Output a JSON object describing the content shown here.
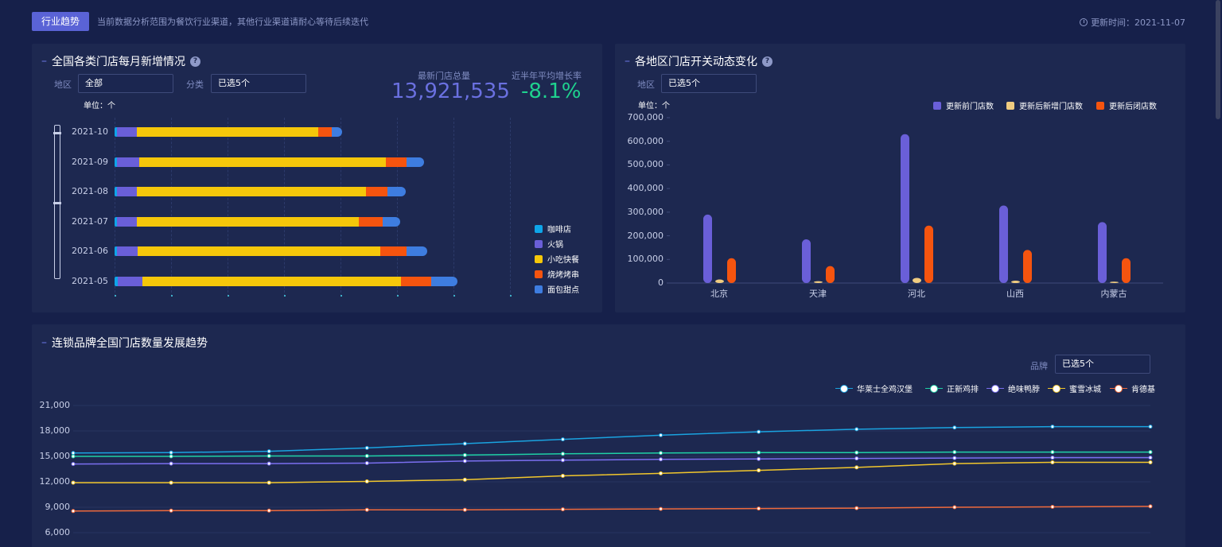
{
  "header": {
    "tag": "行业趋势",
    "notice": "当前数据分析范围为餐饮行业渠道，其他行业渠道请耐心等待后续迭代",
    "update_time": "更新时间：2021-11-07"
  },
  "panel1": {
    "title": "全国各类门店每月新增情况",
    "region_label": "地区",
    "region_value": "全部",
    "category_label": "分类",
    "category_value": "已选5个",
    "unit": "单位：个",
    "stat1_label": "最新门店总量",
    "stat1_value": "13,921,535",
    "stat2_label": "近半年平均增长率",
    "stat2_value": "-8.1%",
    "legend": [
      {
        "name": "咖啡店",
        "color": "#0ea5e9"
      },
      {
        "name": "火锅",
        "color": "#6a5fd8"
      },
      {
        "name": "小吃快餐",
        "color": "#f5c70a"
      },
      {
        "name": "烧烤烤串",
        "color": "#f5540f"
      },
      {
        "name": "面包甜点",
        "color": "#3e7de0"
      }
    ],
    "chart_data": {
      "type": "bar",
      "orientation": "horizontal",
      "stacked": true,
      "categories": [
        "2021-10",
        "2021-09",
        "2021-08",
        "2021-07",
        "2021-06",
        "2021-05"
      ],
      "series": [
        {
          "name": "咖啡店",
          "values": [
            2,
            2,
            2,
            2,
            2,
            3
          ]
        },
        {
          "name": "火锅",
          "values": [
            19,
            22,
            19,
            19,
            20,
            24
          ]
        },
        {
          "name": "小吃快餐",
          "values": [
            174,
            236,
            220,
            213,
            233,
            248
          ]
        },
        {
          "name": "烧烤烤串",
          "values": [
            13,
            20,
            21,
            23,
            25,
            29
          ]
        },
        {
          "name": "面包甜点",
          "values": [
            10,
            17,
            17,
            17,
            20,
            25
          ]
        }
      ],
      "xmax": 380
    }
  },
  "panel2": {
    "title": "各地区门店开关动态变化",
    "region_label": "地区",
    "region_value": "已选5个",
    "unit": "单位：个",
    "chart_data": {
      "type": "bar",
      "categories": [
        "北京",
        "天津",
        "河北",
        "山西",
        "内蒙古"
      ],
      "series": [
        {
          "name": "更新前门店数",
          "color": "#6a5fd8",
          "values": [
            290000,
            185000,
            630000,
            328000,
            258000
          ]
        },
        {
          "name": "更新后新增门店数",
          "color": "#f0cc80",
          "values": [
            15000,
            8000,
            22000,
            10000,
            6000
          ]
        },
        {
          "name": "更新后闭店数",
          "color": "#f5540f",
          "values": [
            105000,
            72000,
            243000,
            140000,
            105000
          ]
        }
      ],
      "yticks": [
        "700,000",
        "600,000",
        "500,000",
        "400,000",
        "300,000",
        "200,000",
        "100,000",
        "0"
      ],
      "ylim": [
        0,
        700000
      ]
    }
  },
  "panel3": {
    "title": "连锁品牌全国门店数量发展趋势",
    "brand_label": "品牌",
    "brand_value": "已选5个",
    "chart_data": {
      "type": "line",
      "x": [
        1,
        2,
        3,
        4,
        5,
        6,
        7,
        8,
        9,
        10,
        11,
        12
      ],
      "series": [
        {
          "name": "华莱士全鸡汉堡",
          "color": "#1aa3e0",
          "values": [
            15400,
            15450,
            15600,
            16000,
            16500,
            17000,
            17500,
            17900,
            18200,
            18400,
            18500,
            18500
          ]
        },
        {
          "name": "正新鸡排",
          "color": "#1fd1a6",
          "values": [
            15000,
            15000,
            15050,
            15050,
            15150,
            15300,
            15400,
            15450,
            15450,
            15500,
            15500,
            15500
          ]
        },
        {
          "name": "绝味鸭脖",
          "color": "#7b6ff0",
          "values": [
            14100,
            14150,
            14150,
            14200,
            14450,
            14550,
            14650,
            14700,
            14750,
            14800,
            14850,
            14850
          ]
        },
        {
          "name": "蜜雪冰城",
          "color": "#f2c72c",
          "values": [
            11900,
            11900,
            11900,
            12050,
            12250,
            12700,
            13000,
            13350,
            13700,
            14150,
            14300,
            14300
          ]
        },
        {
          "name": "肯德基",
          "color": "#f06a3c",
          "values": [
            8550,
            8600,
            8600,
            8700,
            8700,
            8750,
            8800,
            8850,
            8900,
            9000,
            9050,
            9100
          ]
        }
      ],
      "yticks": [
        "21,000",
        "18,000",
        "15,000",
        "12,000",
        "9,000",
        "6,000"
      ],
      "ylim": [
        6000,
        21000
      ]
    }
  }
}
